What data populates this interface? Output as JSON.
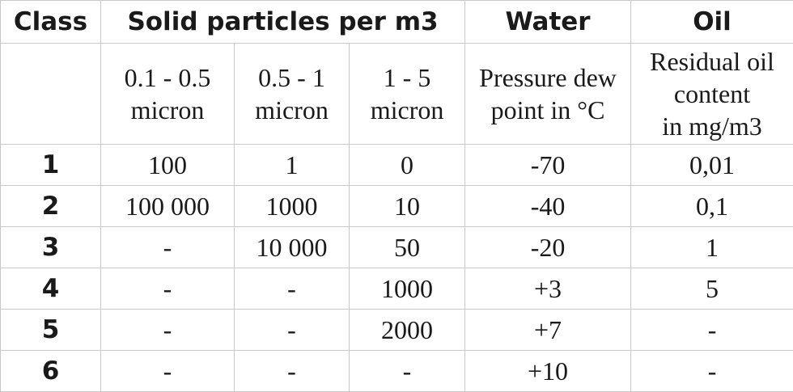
{
  "table": {
    "headers": {
      "class": "Class",
      "solid": "Solid particles per m3",
      "water": "Water",
      "oil": "Oil"
    },
    "subheaders": {
      "size_1": "0.1 - 0.5\nmicron",
      "size_2": "0.5 - 1\nmicron",
      "size_3": "1 - 5\nmicron",
      "water": "Pressure dew\npoint in °C",
      "oil": "Residual oil\ncontent\nin mg/m3"
    },
    "rows": [
      {
        "class": "1",
        "p01_05": "100",
        "p05_1": "1",
        "p1_5": "0",
        "dew_point": "-70",
        "oil": "0,01"
      },
      {
        "class": "2",
        "p01_05": "100 000",
        "p05_1": "1000",
        "p1_5": "10",
        "dew_point": "-40",
        "oil": "0,1"
      },
      {
        "class": "3",
        "p01_05": "-",
        "p05_1": "10 000",
        "p1_5": "50",
        "dew_point": "-20",
        "oil": "1"
      },
      {
        "class": "4",
        "p01_05": "-",
        "p05_1": "-",
        "p1_5": "1000",
        "dew_point": "+3",
        "oil": "5"
      },
      {
        "class": "5",
        "p01_05": "-",
        "p05_1": "-",
        "p1_5": "2000",
        "dew_point": "+7",
        "oil": "-"
      },
      {
        "class": "6",
        "p01_05": "-",
        "p05_1": "-",
        "p1_5": "-",
        "dew_point": "+10",
        "oil": "-"
      }
    ]
  }
}
